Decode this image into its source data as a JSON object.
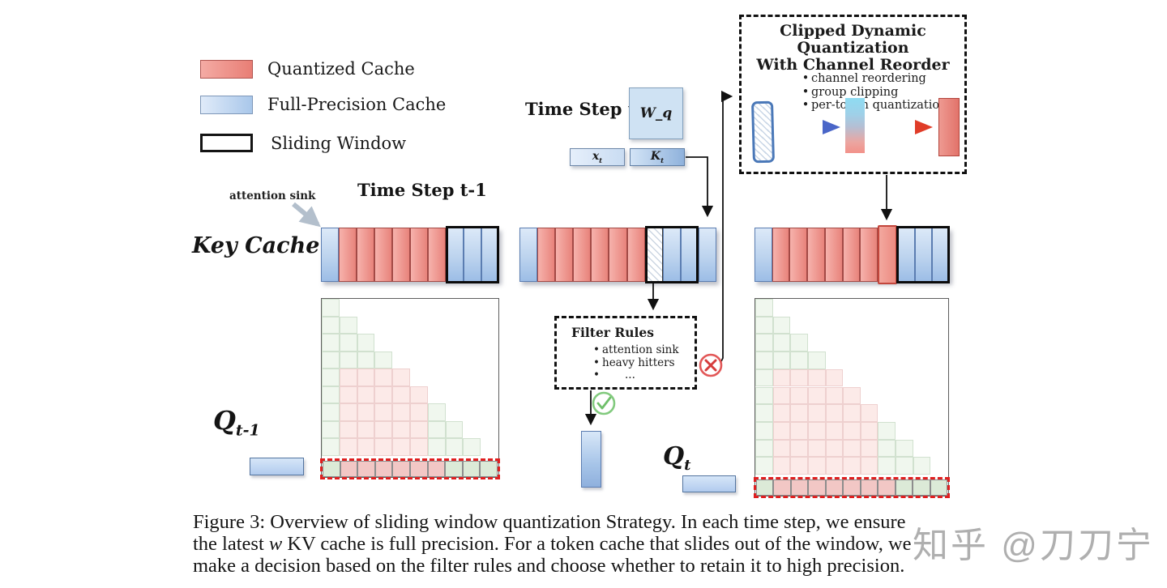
{
  "legend": {
    "items": [
      {
        "id": "quantized",
        "label": "Quantized Cache"
      },
      {
        "id": "full-precision",
        "label": "Full-Precision Cache"
      },
      {
        "id": "sliding-window",
        "label": "Sliding Window"
      }
    ]
  },
  "headings": {
    "time_step_t": "Time Step t",
    "time_step_t_minus_1": "Time Step t-1",
    "key_cache": "Key Cache",
    "attention_sink": "attention sink"
  },
  "ops": {
    "w_q": "W_q",
    "x_base": "x",
    "x_sub": "t",
    "k_base": "K",
    "k_sub": "t",
    "q_prev_base": "Q",
    "q_prev_sub": "t-1",
    "q_cur_base": "Q",
    "q_cur_sub": "t"
  },
  "clipped_box": {
    "title_line1": "Clipped Dynamic Quantization",
    "title_line2": "With Channel Reorder",
    "bullets": [
      "channel reordering",
      "group clipping",
      "per-token quantization"
    ]
  },
  "filter_box": {
    "title": "Filter Rules",
    "bullets": [
      "attention sink",
      "heavy hitters",
      "..."
    ]
  },
  "cache_rows": [
    {
      "name": "key-cache-time-step-t-minus-1",
      "cells": [
        "blue",
        "red",
        "red",
        "red",
        "red",
        "red",
        "red",
        "blue",
        "blue",
        "blue"
      ],
      "window": [
        7,
        9
      ]
    },
    {
      "name": "key-cache-time-step-t-filtering",
      "cells": [
        "blue",
        "red",
        "red",
        "red",
        "red",
        "red",
        "red",
        "hatched",
        "blue",
        "blue",
        "blue"
      ],
      "window": [
        7,
        9
      ]
    },
    {
      "name": "key-cache-time-step-t-after-quantization",
      "cells": [
        "blue",
        "red",
        "red",
        "red",
        "red",
        "red",
        "red",
        "red-new",
        "blue",
        "blue",
        "blue"
      ],
      "window": [
        8,
        10
      ]
    }
  ],
  "matrices": [
    {
      "name": "attention-matrix-q-t-minus-1",
      "cols": 10,
      "bottom_row": [
        "green",
        "red",
        "red",
        "red",
        "red",
        "red",
        "red",
        "green",
        "green",
        "green"
      ]
    },
    {
      "name": "attention-matrix-q-t",
      "cols": 11,
      "bottom_row": [
        "green",
        "red",
        "red",
        "red",
        "red",
        "red",
        "red",
        "red",
        "green",
        "green",
        "green"
      ]
    }
  ],
  "caption": {
    "line1": "Figure 3: Overview of sliding window quantization Strategy. In each time step, we ensure",
    "line2_pre": "the latest ",
    "line2_math": "w",
    "line2_post": " KV cache is full precision. For a token cache that slides out of the window, we",
    "line3": "make a decision based on the filter rules and choose whether to retain it to high precision."
  },
  "watermark": "知乎 @刀刀宁",
  "colors": {
    "quantized_red": "#e8837b",
    "full_precision_blue": "#a9c7ea",
    "window_border": "#0b0b0b",
    "evicted_row_dash": "#df1f1f",
    "retained_green": "#dcead7",
    "quantized_pink": "#f2c7c5"
  }
}
